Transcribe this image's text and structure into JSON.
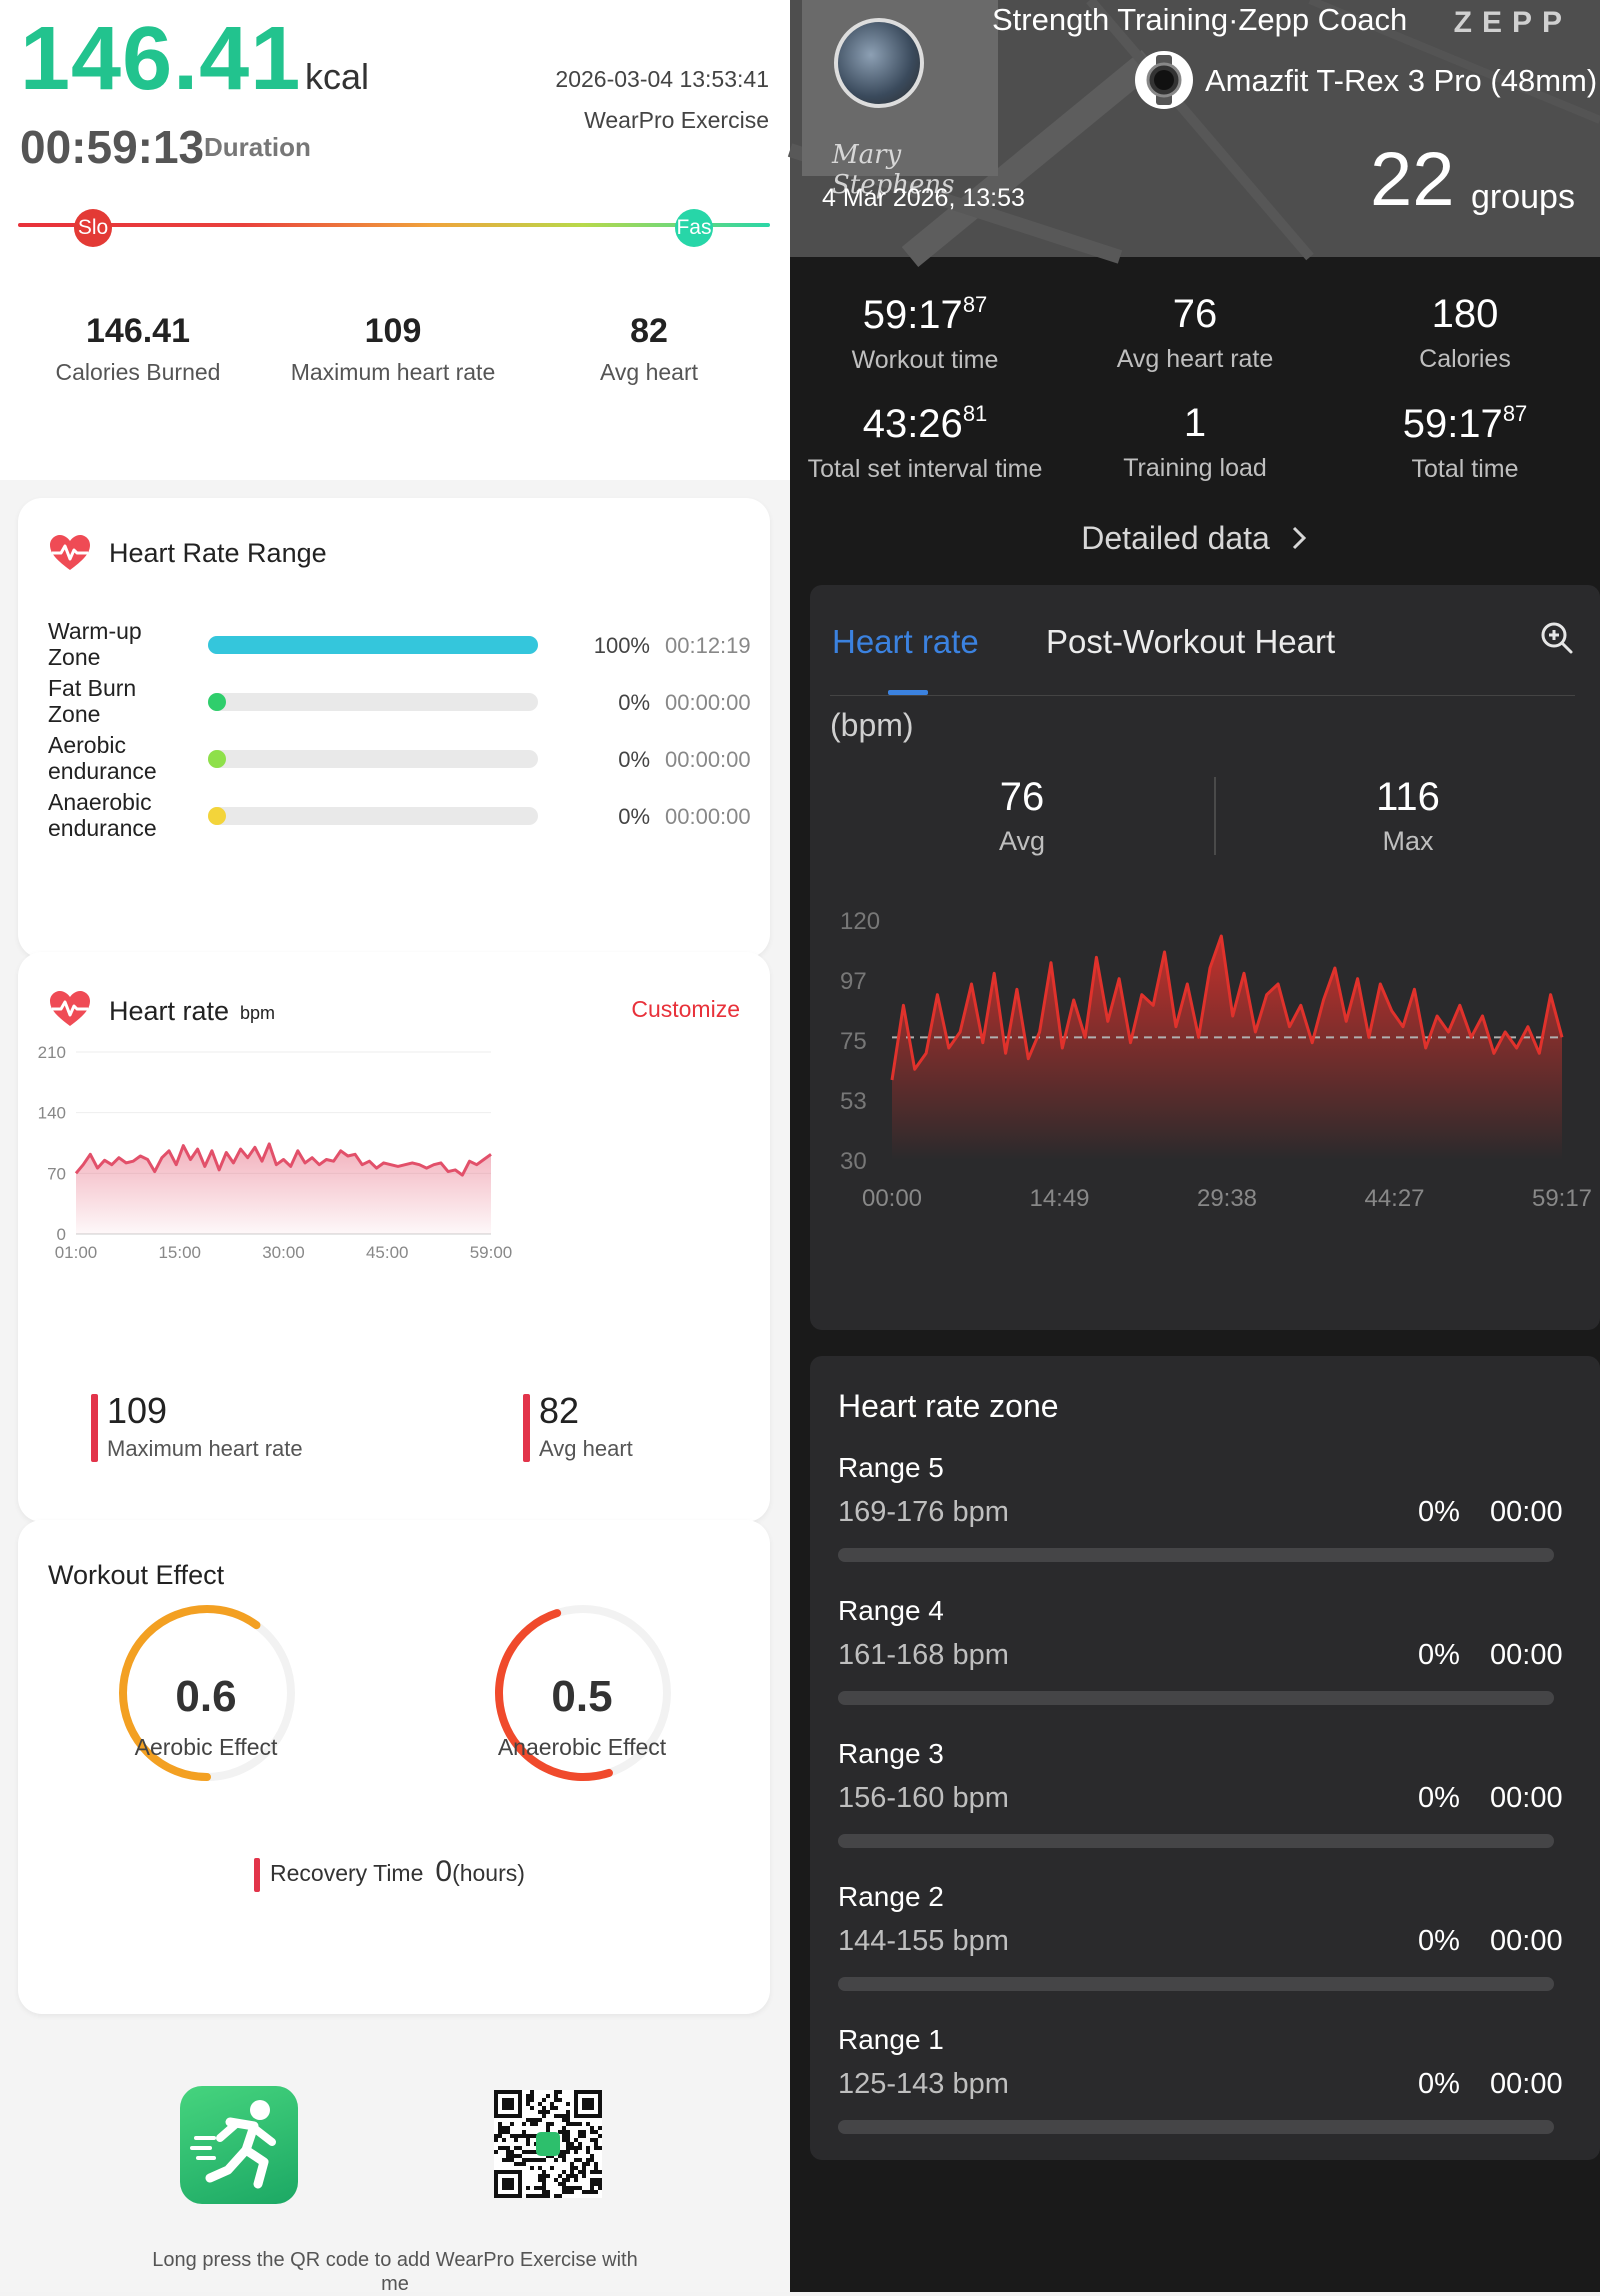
{
  "left": {
    "summary": {
      "calories_big": "146.41",
      "calories_unit": "kcal",
      "datetime": "2026-03-04 13:53:41",
      "source": "WearPro Exercise",
      "duration": "00:59:13",
      "duration_label": "Duration",
      "speed_slow_label": "Slo",
      "speed_fast_label": "Fas"
    },
    "stats": [
      {
        "value": "146.41",
        "label": "Calories Burned"
      },
      {
        "value": "109",
        "label": "Maximum heart rate"
      },
      {
        "value": "82",
        "label": "Avg heart"
      }
    ],
    "hr_range": {
      "title": "Heart Rate Range",
      "zones": [
        {
          "name": "Warm-up Zone",
          "percent": "100%",
          "time": "00:12:19",
          "fill": 1.0,
          "color": "#34c6dc"
        },
        {
          "name": "Fat Burn Zone",
          "percent": "0%",
          "time": "00:00:00",
          "fill": 0,
          "color": "#2fce6c"
        },
        {
          "name": "Aerobic endurance",
          "percent": "0%",
          "time": "00:00:00",
          "fill": 0,
          "color": "#8ee04a"
        },
        {
          "name": "Anaerobic endurance",
          "percent": "0%",
          "time": "00:00:00",
          "fill": 0,
          "color": "#f3d43a"
        }
      ]
    },
    "hr_chart": {
      "title": "Heart rate",
      "unit": "bpm",
      "customize": "Customize",
      "max_value": "109",
      "max_label": "Maximum heart rate",
      "avg_value": "82",
      "avg_label": "Avg heart"
    },
    "workout_effect": {
      "title": "Workout Effect",
      "aerobic_value": "0.6",
      "aerobic_label": "Aerobic Effect",
      "aerobic_color": "#f3a022",
      "anaerobic_value": "0.5",
      "anaerobic_label": "Anaerobic Effect",
      "anaerobic_color": "#f04a2c",
      "recovery_label": "Recovery Time",
      "recovery_value": "0",
      "recovery_unit": "(hours)"
    },
    "footer": {
      "app_icon": "running-man-icon",
      "qr_note": "Long press the QR code to add WearPro Exercise with me"
    }
  },
  "right": {
    "header": {
      "title": "Strength Training·Zepp Coach",
      "logo": "ZEPP",
      "watch": "Amazfit T-Rex 3 Pro (48mm)",
      "signature": "Mary Stephens",
      "date": "4 Mar 2026, 13:53",
      "groups_value": "22",
      "groups_label": "groups"
    },
    "stats": [
      {
        "main": "59:17",
        "sup": "87",
        "label": "Workout time"
      },
      {
        "main": "76",
        "sup": "",
        "label": "Avg heart rate"
      },
      {
        "main": "180",
        "sup": "",
        "label": "Calories"
      },
      {
        "main": "43:26",
        "sup": "81",
        "label": "Total set interval time"
      },
      {
        "main": "1",
        "sup": "",
        "label": "Training load"
      },
      {
        "main": "59:17",
        "sup": "87",
        "label": "Total time"
      }
    ],
    "detailed_data": "Detailed data",
    "hr_card": {
      "tab_active": "Heart rate",
      "tab_inactive": "Post-Workout Heart",
      "unit": "(bpm)",
      "avg_value": "76",
      "avg_label": "Avg",
      "max_value": "116",
      "max_label": "Max"
    },
    "zone_card": {
      "title": "Heart rate zone",
      "zones": [
        {
          "name": "Range 5",
          "range": "169-176 bpm",
          "percent": "0%",
          "time": "00:00"
        },
        {
          "name": "Range 4",
          "range": "161-168 bpm",
          "percent": "0%",
          "time": "00:00"
        },
        {
          "name": "Range 3",
          "range": "156-160 bpm",
          "percent": "0%",
          "time": "00:00"
        },
        {
          "name": "Range 2",
          "range": "144-155 bpm",
          "percent": "0%",
          "time": "00:00"
        },
        {
          "name": "Range 1",
          "range": "125-143 bpm",
          "percent": "0%",
          "time": "00:00"
        }
      ]
    }
  },
  "chart_data": [
    {
      "type": "area",
      "title": "Heart rate",
      "ylabel": "bpm",
      "x_ticks": [
        "01:00",
        "15:00",
        "30:00",
        "45:00",
        "59:00"
      ],
      "y_ticks": [
        0,
        70,
        140,
        210
      ],
      "ylim": [
        0,
        210
      ],
      "xlim": [
        1,
        59
      ],
      "color": "#e2506a",
      "x": [
        1,
        2,
        3,
        4,
        5,
        6,
        7,
        8,
        9,
        10,
        11,
        12,
        13,
        14,
        15,
        16,
        17,
        18,
        19,
        20,
        21,
        22,
        23,
        24,
        25,
        26,
        27,
        28,
        29,
        30,
        31,
        32,
        33,
        34,
        35,
        36,
        37,
        38,
        39,
        40,
        41,
        42,
        43,
        44,
        45,
        46,
        47,
        48,
        49,
        50,
        51,
        52,
        53,
        54,
        55,
        56,
        57,
        58,
        59
      ],
      "values": [
        70,
        80,
        92,
        76,
        85,
        80,
        88,
        82,
        84,
        90,
        86,
        72,
        88,
        96,
        80,
        102,
        86,
        98,
        78,
        96,
        74,
        94,
        82,
        98,
        88,
        100,
        84,
        104,
        80,
        86,
        78,
        96,
        82,
        88,
        80,
        86,
        84,
        96,
        90,
        92,
        80,
        84,
        76,
        82,
        80,
        78,
        80,
        82,
        80,
        76,
        80,
        82,
        72,
        74,
        68,
        84,
        80,
        86,
        92
      ]
    },
    {
      "type": "area",
      "title": "Heart rate",
      "ylabel": "(bpm)",
      "x_ticks": [
        "00:00",
        "14:49",
        "29:38",
        "44:27",
        "59:17"
      ],
      "y_ticks": [
        30,
        53,
        75,
        97,
        120
      ],
      "ylim": [
        30,
        120
      ],
      "avg_line": 76,
      "color": "#e0322c",
      "x": [
        0,
        1,
        2,
        3,
        4,
        5,
        6,
        7,
        8,
        9,
        10,
        11,
        12,
        13,
        14,
        15,
        16,
        17,
        18,
        19,
        20,
        21,
        22,
        23,
        24,
        25,
        26,
        27,
        28,
        29,
        30,
        31,
        32,
        33,
        34,
        35,
        36,
        37,
        38,
        39,
        40,
        41,
        42,
        43,
        44,
        45,
        46,
        47,
        48,
        49,
        50,
        51,
        52,
        53,
        54,
        55,
        56,
        57,
        58,
        59
      ],
      "values": [
        60,
        88,
        64,
        70,
        92,
        72,
        78,
        96,
        74,
        100,
        70,
        94,
        68,
        78,
        104,
        72,
        90,
        76,
        106,
        82,
        98,
        74,
        92,
        88,
        108,
        80,
        96,
        76,
        102,
        114,
        84,
        100,
        78,
        92,
        96,
        80,
        88,
        74,
        90,
        102,
        82,
        98,
        76,
        96,
        86,
        80,
        94,
        72,
        84,
        78,
        88,
        76,
        84,
        70,
        78,
        72,
        80,
        70,
        92,
        76
      ]
    }
  ]
}
